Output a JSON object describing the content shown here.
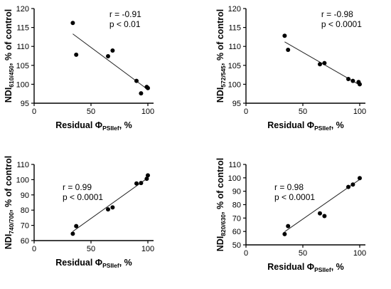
{
  "chart_data": [
    {
      "type": "scatter",
      "xlabel": "Residual ΦPSIIef, %",
      "xlabel_main": "Residual Φ",
      "xlabel_sub": "PSIIef",
      "xlabel_unit": ", %",
      "ylabel_main": "NDI",
      "ylabel_sub": "610/450",
      "ylabel_unit": ", % of control",
      "xlim": [
        0,
        105
      ],
      "ylim": [
        95,
        120
      ],
      "xticks": [
        "0",
        "50",
        "100"
      ],
      "yticks": [
        "95",
        "100",
        "105",
        "110",
        "115",
        "120"
      ],
      "points": [
        {
          "x": 34,
          "y": 116.2
        },
        {
          "x": 37,
          "y": 107.8
        },
        {
          "x": 65,
          "y": 107.4
        },
        {
          "x": 69,
          "y": 108.9
        },
        {
          "x": 90,
          "y": 100.9
        },
        {
          "x": 94,
          "y": 97.6
        },
        {
          "x": 99,
          "y": 99.3
        },
        {
          "x": 100,
          "y": 99.0
        }
      ],
      "fit": [
        {
          "x": 34,
          "y": 113.3
        },
        {
          "x": 100,
          "y": 98.6
        }
      ],
      "annotation": [
        "r = -0.91",
        "p < 0.01"
      ]
    },
    {
      "type": "scatter",
      "xlabel": "Residual ΦPSIIef, %",
      "xlabel_main": "Residual Φ",
      "xlabel_sub": "PSIIef",
      "xlabel_unit": ", %",
      "ylabel_main": "NDI",
      "ylabel_sub": "572/545",
      "ylabel_unit": ", % of control",
      "xlim": [
        0,
        105
      ],
      "ylim": [
        95,
        120
      ],
      "xticks": [
        "0",
        "50",
        "100"
      ],
      "yticks": [
        "95",
        "100",
        "105",
        "110",
        "115",
        "120"
      ],
      "points": [
        {
          "x": 34,
          "y": 112.8
        },
        {
          "x": 37,
          "y": 109.1
        },
        {
          "x": 65,
          "y": 105.3
        },
        {
          "x": 69,
          "y": 105.6
        },
        {
          "x": 90,
          "y": 101.4
        },
        {
          "x": 94,
          "y": 100.9
        },
        {
          "x": 99,
          "y": 100.6
        },
        {
          "x": 100,
          "y": 100.0
        }
      ],
      "fit": [
        {
          "x": 34,
          "y": 111.2
        },
        {
          "x": 100,
          "y": 99.8
        }
      ],
      "annotation": [
        "r = -0.98",
        "p < 0.0001"
      ]
    },
    {
      "type": "scatter",
      "xlabel": "Residual ΦPSIIef, %",
      "xlabel_main": "Residual Φ",
      "xlabel_sub": "PSIIef",
      "xlabel_unit": ", %",
      "ylabel_main": "NDI",
      "ylabel_sub": "740/700",
      "ylabel_unit": ", % of control",
      "xlim": [
        0,
        105
      ],
      "ylim": [
        60,
        110
      ],
      "xticks": [
        "0",
        "50",
        "100"
      ],
      "yticks": [
        "60",
        "70",
        "80",
        "90",
        "100",
        "110"
      ],
      "points": [
        {
          "x": 34,
          "y": 64.5
        },
        {
          "x": 37,
          "y": 69.5
        },
        {
          "x": 65,
          "y": 80.5
        },
        {
          "x": 69,
          "y": 81.8
        },
        {
          "x": 90,
          "y": 97.5
        },
        {
          "x": 94,
          "y": 97.8
        },
        {
          "x": 99,
          "y": 100.6
        },
        {
          "x": 100,
          "y": 102.8
        }
      ],
      "fit": [
        {
          "x": 34,
          "y": 66.0
        },
        {
          "x": 100,
          "y": 101.2
        }
      ],
      "annotation": [
        "r = 0.99",
        "p < 0.0001"
      ]
    },
    {
      "type": "scatter",
      "xlabel": "Residual ΦPSIIef, %",
      "xlabel_main": "Residual Φ",
      "xlabel_sub": "PSIIef",
      "xlabel_unit": ", %",
      "ylabel_main": "NDI",
      "ylabel_sub": "820/630",
      "ylabel_unit": ", % of control",
      "xlim": [
        0,
        105
      ],
      "ylim": [
        50,
        110
      ],
      "xticks": [
        "0",
        "50",
        "100"
      ],
      "yticks": [
        "50",
        "60",
        "70",
        "80",
        "90",
        "100",
        "110"
      ],
      "points": [
        {
          "x": 34,
          "y": 58.0
        },
        {
          "x": 37,
          "y": 64.0
        },
        {
          "x": 65,
          "y": 73.5
        },
        {
          "x": 69,
          "y": 71.5
        },
        {
          "x": 90,
          "y": 93.2
        },
        {
          "x": 94,
          "y": 95.0
        },
        {
          "x": 100,
          "y": 99.8
        }
      ],
      "fit": [
        {
          "x": 34,
          "y": 59.8
        },
        {
          "x": 100,
          "y": 98.8
        }
      ],
      "annotation": [
        "r = 0.98",
        "p < 0.0001"
      ]
    }
  ]
}
